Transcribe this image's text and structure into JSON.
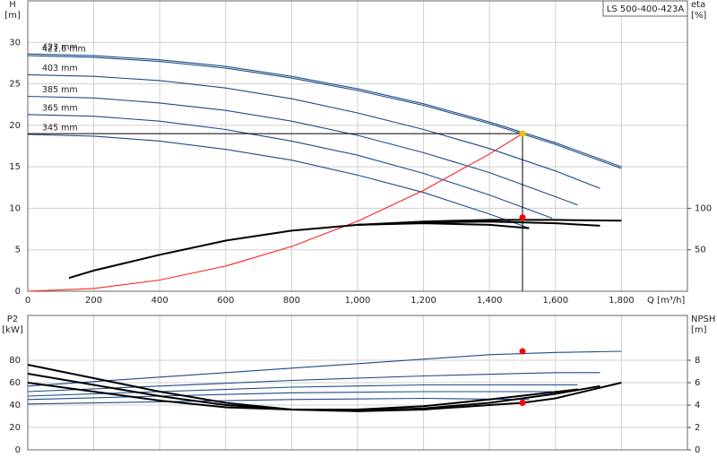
{
  "chart_data": [
    {
      "type": "line",
      "box_label": "LS 500-400-423A",
      "y_label": "H",
      "y_unit": "[m]",
      "y2_label": "eta",
      "y2_unit": "[%]",
      "x_label": "Q [m³/h]",
      "xlim": [
        0,
        2000
      ],
      "xticks": [
        0,
        200,
        400,
        600,
        800,
        {
          "value": 1000,
          "label": "1,000"
        },
        {
          "value": 1200,
          "label": "1,200"
        },
        {
          "value": 1400,
          "label": "1,400"
        },
        {
          "value": 1600,
          "label": "1,600"
        },
        {
          "value": 1800,
          "label": "1,800"
        }
      ],
      "ylim": [
        0,
        35
      ],
      "yticks": [
        0,
        5,
        10,
        15,
        20,
        25,
        30
      ],
      "y2lim": [
        0,
        350
      ],
      "y2ticks": [
        50,
        100
      ],
      "grid": true,
      "series": [
        {
          "name": "423 mm",
          "color": "#1e4a86",
          "x": [
            0,
            200,
            400,
            600,
            800,
            1000,
            1200,
            1400,
            1600,
            1800
          ],
          "values": [
            28.6,
            28.4,
            27.9,
            27.1,
            25.9,
            24.4,
            22.6,
            20.4,
            17.9,
            15.0
          ]
        },
        {
          "name": "421.6 mm",
          "color": "#1e4a86",
          "x": [
            0,
            200,
            400,
            600,
            800,
            1000,
            1200,
            1400,
            1600,
            1800
          ],
          "values": [
            28.4,
            28.2,
            27.7,
            26.9,
            25.7,
            24.2,
            22.4,
            20.2,
            17.7,
            14.8
          ]
        },
        {
          "name": "403 mm",
          "color": "#1e4a86",
          "x": [
            0,
            200,
            400,
            600,
            800,
            1000,
            1200,
            1400,
            1600,
            1735
          ],
          "values": [
            26.1,
            25.9,
            25.4,
            24.5,
            23.2,
            21.5,
            19.5,
            17.2,
            14.5,
            12.4
          ]
        },
        {
          "name": "385 mm",
          "color": "#1e4a86",
          "x": [
            0,
            200,
            400,
            600,
            800,
            1000,
            1200,
            1400,
            1600,
            1667
          ],
          "values": [
            23.5,
            23.3,
            22.7,
            21.8,
            20.5,
            18.8,
            16.7,
            14.3,
            11.4,
            10.4
          ]
        },
        {
          "name": "365 mm",
          "color": "#1e4a86",
          "x": [
            0,
            200,
            400,
            600,
            800,
            1000,
            1200,
            1400,
            1590
          ],
          "values": [
            21.3,
            21.1,
            20.5,
            19.5,
            18.1,
            16.4,
            14.2,
            11.6,
            8.8
          ]
        },
        {
          "name": "345 mm",
          "color": "#1e4a86",
          "x": [
            0,
            200,
            400,
            600,
            800,
            1000,
            1200,
            1400,
            1520
          ],
          "values": [
            18.9,
            18.7,
            18.1,
            17.1,
            15.8,
            14.0,
            11.9,
            9.3,
            7.6
          ]
        },
        {
          "color": "#ff2020",
          "x": [
            0,
            200,
            400,
            600,
            800,
            1000,
            1200,
            1400,
            1500
          ],
          "values": [
            0,
            0.34,
            1.35,
            3.04,
            5.4,
            8.44,
            12.16,
            16.55,
            19.0
          ]
        },
        {
          "color": "#000000",
          "axis": "y2",
          "x": [
            125,
            200,
            400,
            600,
            800,
            1000,
            1200,
            1400,
            1600,
            1800
          ],
          "values": [
            16,
            25,
            44,
            61,
            73,
            80,
            84,
            86,
            86,
            85
          ]
        },
        {
          "color": "#000000",
          "axis": "y2",
          "x": [
            1000,
            1200,
            1400,
            1600,
            1735
          ],
          "values": [
            80,
            83,
            84,
            82,
            79
          ]
        },
        {
          "color": "#000000",
          "axis": "y2",
          "x": [
            1000,
            1200,
            1400,
            1520
          ],
          "values": [
            80,
            82,
            80,
            76
          ]
        }
      ],
      "markers": [
        {
          "x": 1500,
          "y": 19.0,
          "color": "#f5c000",
          "crosshair": true
        },
        {
          "x": 1500,
          "y": 89,
          "axis": "y2",
          "color": "#ff0000"
        }
      ]
    },
    {
      "type": "line",
      "y_label": "P2",
      "y_unit": "[kW]",
      "y2_label": "NPSH",
      "y2_unit": "[m]",
      "xlim": [
        0,
        2000
      ],
      "ylim": [
        0,
        120
      ],
      "yticks": [
        0,
        20,
        40,
        60,
        80
      ],
      "y2lim": [
        0,
        12
      ],
      "y2ticks": [
        0,
        2,
        4,
        6,
        8
      ],
      "grid": true,
      "series": [
        {
          "color": "#1e4a86",
          "x": [
            0,
            200,
            400,
            600,
            800,
            1000,
            1200,
            1400,
            1600,
            1800
          ],
          "values": [
            57,
            61,
            65,
            69,
            73,
            77,
            81,
            85,
            87,
            88
          ]
        },
        {
          "color": "#1e4a86",
          "x": [
            0,
            400,
            800,
            1200,
            1600,
            1735
          ],
          "values": [
            52,
            57,
            62,
            66,
            69,
            69
          ]
        },
        {
          "color": "#1e4a86",
          "x": [
            0,
            400,
            800,
            1200,
            1667
          ],
          "values": [
            48,
            52,
            56,
            58,
            58
          ]
        },
        {
          "color": "#1e4a86",
          "x": [
            0,
            400,
            800,
            1200,
            1590
          ],
          "values": [
            45,
            48,
            51,
            52,
            52
          ]
        },
        {
          "color": "#1e4a86",
          "x": [
            0,
            400,
            800,
            1200,
            1520
          ],
          "values": [
            41,
            43,
            45,
            46,
            45
          ]
        },
        {
          "color": "#000000",
          "axis": "y2",
          "x": [
            0,
            200,
            400,
            600,
            800,
            1000,
            1200,
            1400,
            1500,
            1600,
            1800
          ],
          "values": [
            7.6,
            6.4,
            5.2,
            4.2,
            3.6,
            3.45,
            3.6,
            4.0,
            4.2,
            4.6,
            6.0
          ]
        },
        {
          "color": "#000000",
          "axis": "y2",
          "x": [
            0,
            200,
            400,
            600,
            800,
            1000,
            1200,
            1400,
            1600,
            1735
          ],
          "values": [
            6.8,
            5.8,
            4.8,
            4.0,
            3.6,
            3.5,
            3.7,
            4.2,
            5.0,
            5.7
          ]
        },
        {
          "color": "#000000",
          "axis": "y2",
          "x": [
            0,
            200,
            400,
            600,
            800,
            1000,
            1200,
            1400,
            1667
          ],
          "values": [
            6.0,
            5.2,
            4.4,
            3.8,
            3.6,
            3.6,
            3.9,
            4.5,
            5.4
          ]
        }
      ],
      "markers": [
        {
          "x": 1500,
          "y": 88,
          "color": "#ff0000"
        },
        {
          "x": 1500,
          "y": 4.2,
          "axis": "y2",
          "color": "#ff0000"
        }
      ]
    }
  ]
}
